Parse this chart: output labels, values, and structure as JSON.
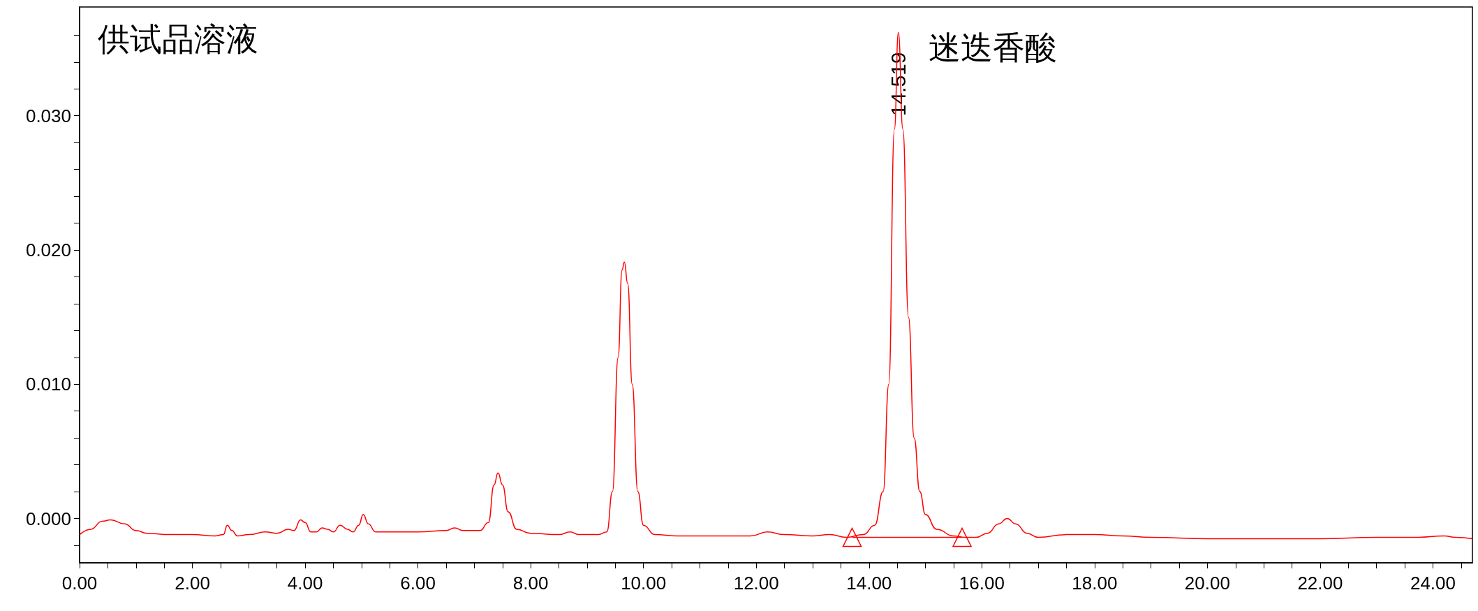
{
  "chart_data": {
    "type": "line",
    "title": "供试品溶液",
    "annotations": [
      {
        "text": "14.519",
        "x": 14.519,
        "y": 0.0362
      },
      "迷迭香酸"
    ],
    "xlim": [
      0,
      24.7
    ],
    "ylim": [
      -0.0033,
      0.0381
    ],
    "xticks": [
      {
        "value": 0,
        "label": "0.00"
      },
      {
        "value": 0.5,
        "label": null
      },
      {
        "value": 1,
        "label": null
      },
      {
        "value": 1.5,
        "label": null
      },
      {
        "value": 2,
        "label": "2.00"
      },
      {
        "value": 2.5,
        "label": null
      },
      {
        "value": 3,
        "label": null
      },
      {
        "value": 3.5,
        "label": null
      },
      {
        "value": 4,
        "label": "4.00"
      },
      {
        "value": 4.5,
        "label": null
      },
      {
        "value": 5,
        "label": null
      },
      {
        "value": 5.5,
        "label": null
      },
      {
        "value": 6,
        "label": "6.00"
      },
      {
        "value": 6.5,
        "label": null
      },
      {
        "value": 7,
        "label": null
      },
      {
        "value": 7.5,
        "label": null
      },
      {
        "value": 8,
        "label": "8.00"
      },
      {
        "value": 8.5,
        "label": null
      },
      {
        "value": 9,
        "label": null
      },
      {
        "value": 9.5,
        "label": null
      },
      {
        "value": 10,
        "label": "10.00"
      },
      {
        "value": 10.5,
        "label": null
      },
      {
        "value": 11,
        "label": null
      },
      {
        "value": 11.5,
        "label": null
      },
      {
        "value": 12,
        "label": "12.00"
      },
      {
        "value": 12.5,
        "label": null
      },
      {
        "value": 13,
        "label": null
      },
      {
        "value": 13.5,
        "label": null
      },
      {
        "value": 14,
        "label": "14.00"
      },
      {
        "value": 14.5,
        "label": null
      },
      {
        "value": 15,
        "label": null
      },
      {
        "value": 15.5,
        "label": null
      },
      {
        "value": 16,
        "label": "16.00"
      },
      {
        "value": 16.5,
        "label": null
      },
      {
        "value": 17,
        "label": null
      },
      {
        "value": 17.5,
        "label": null
      },
      {
        "value": 18,
        "label": "18.00"
      },
      {
        "value": 18.5,
        "label": null
      },
      {
        "value": 19,
        "label": null
      },
      {
        "value": 19.5,
        "label": null
      },
      {
        "value": 20,
        "label": "20.00"
      },
      {
        "value": 20.5,
        "label": null
      },
      {
        "value": 21,
        "label": null
      },
      {
        "value": 21.5,
        "label": null
      },
      {
        "value": 22,
        "label": "22.00"
      },
      {
        "value": 22.5,
        "label": null
      },
      {
        "value": 23,
        "label": null
      },
      {
        "value": 23.5,
        "label": null
      },
      {
        "value": 24,
        "label": "24.00"
      },
      {
        "value": 24.5,
        "label": null
      }
    ],
    "yticks": [
      {
        "value": -0.002,
        "label": null
      },
      {
        "value": 0,
        "label": "0.000"
      },
      {
        "value": 0.002,
        "label": null
      },
      {
        "value": 0.004,
        "label": null
      },
      {
        "value": 0.006,
        "label": null
      },
      {
        "value": 0.008,
        "label": null
      },
      {
        "value": 0.01,
        "label": "0.010"
      },
      {
        "value": 0.012,
        "label": null
      },
      {
        "value": 0.014,
        "label": null
      },
      {
        "value": 0.016,
        "label": null
      },
      {
        "value": 0.018,
        "label": null
      },
      {
        "value": 0.02,
        "label": "0.020"
      },
      {
        "value": 0.022,
        "label": null
      },
      {
        "value": 0.024,
        "label": null
      },
      {
        "value": 0.026,
        "label": null
      },
      {
        "value": 0.028,
        "label": null
      },
      {
        "value": 0.03,
        "label": "0.030"
      },
      {
        "value": 0.032,
        "label": null
      },
      {
        "value": 0.034,
        "label": null
      },
      {
        "value": 0.036,
        "label": null
      }
    ],
    "grid": false,
    "series": [
      {
        "color": "#ff0000",
        "marker": "none",
        "x": [
          0,
          0.2,
          0.4,
          0.55,
          0.8,
          1,
          1.2,
          1.6,
          2,
          2.4,
          2.55,
          2.62,
          2.7,
          2.8,
          3,
          3.3,
          3.5,
          3.7,
          3.8,
          3.92,
          4,
          4.1,
          4.2,
          4.3,
          4.4,
          4.5,
          4.62,
          4.75,
          4.85,
          4.95,
          5.03,
          5.12,
          5.25,
          5.5,
          6,
          6.5,
          6.65,
          6.8,
          7.1,
          7.25,
          7.35,
          7.42,
          7.5,
          7.6,
          7.75,
          8,
          8.5,
          8.7,
          8.85,
          9.2,
          9.35,
          9.45,
          9.55,
          9.62,
          9.66,
          9.72,
          9.8,
          9.9,
          10,
          10.2,
          10.6,
          11.5,
          11.9,
          12.2,
          12.5,
          13,
          13.3,
          13.6,
          13.9,
          14.1,
          14.25,
          14.35,
          14.45,
          14.52,
          14.6,
          14.7,
          14.8,
          14.9,
          15,
          15.2,
          15.5,
          15.7,
          15.9,
          16.1,
          16.3,
          16.45,
          16.6,
          16.8,
          17,
          17.5,
          18,
          18.5,
          19,
          20,
          21,
          22,
          23,
          23.7,
          24.2,
          24.4,
          24.7
        ],
        "values": [
          -0.0012,
          -0.0008,
          -0.0002,
          -0.0001,
          -0.0004,
          -0.0009,
          -0.0011,
          -0.0012,
          -0.0012,
          -0.0013,
          -0.0012,
          -0.0005,
          -0.0009,
          -0.0013,
          -0.0012,
          -0.001,
          -0.0011,
          -0.0008,
          -0.0009,
          -0.0001,
          -0.0003,
          -0.001,
          -0.001,
          -0.0007,
          -0.0008,
          -0.001,
          -0.0005,
          -0.0008,
          -0.001,
          -0.0005,
          0.0003,
          -0.0004,
          -0.001,
          -0.001,
          -0.001,
          -0.0009,
          -0.0007,
          -0.0009,
          -0.0009,
          -0.0003,
          0.0025,
          0.0034,
          0.0025,
          0.0005,
          -0.0008,
          -0.0011,
          -0.0012,
          -0.001,
          -0.0012,
          -0.0012,
          -0.001,
          0.002,
          0.012,
          0.0185,
          0.0191,
          0.0175,
          0.01,
          0.002,
          -0.0005,
          -0.0012,
          -0.0013,
          -0.0013,
          -0.0013,
          -0.001,
          -0.0012,
          -0.0013,
          -0.0012,
          -0.0014,
          -0.0012,
          -0.0005,
          0.002,
          0.01,
          0.029,
          0.0362,
          0.029,
          0.015,
          0.006,
          0.002,
          0.0003,
          -0.0008,
          -0.0013,
          -0.0014,
          -0.0014,
          -0.0011,
          -0.0004,
          0,
          -0.0004,
          -0.0011,
          -0.0014,
          -0.0012,
          -0.0012,
          -0.0013,
          -0.0014,
          -0.0015,
          -0.0015,
          -0.0015,
          -0.0014,
          -0.0014,
          -0.0013,
          -0.0014,
          -0.0015
        ]
      },
      {
        "color": "#ff0000",
        "marker": "triangle",
        "x": [
          13.7,
          15.65
        ],
        "values": [
          -0.0014,
          -0.0014
        ]
      }
    ]
  }
}
